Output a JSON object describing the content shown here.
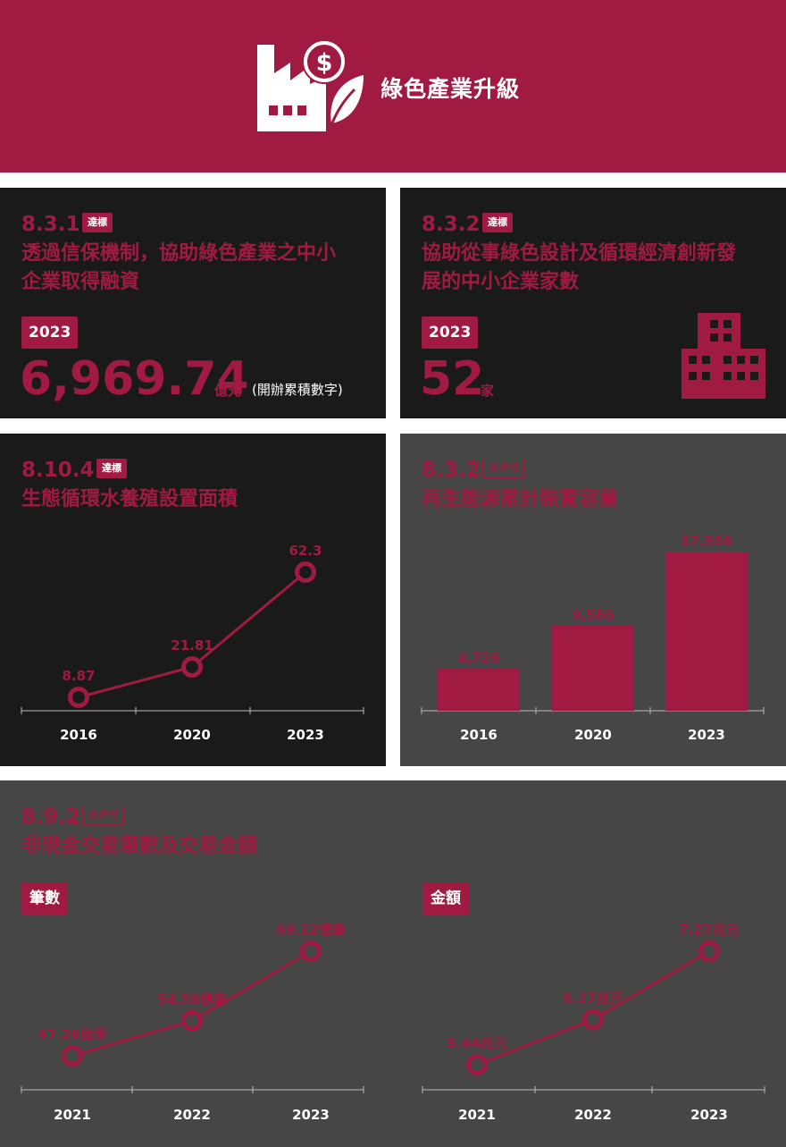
{
  "header": {
    "title": "綠色產業升級",
    "icon": "factory-money-leaf-icon"
  },
  "colors": {
    "accent": "#a01a41",
    "dark_bg": "#1a1a1a",
    "grey_bg": "#464646",
    "header_bg": "#a01a41"
  },
  "panels": {
    "p1": {
      "code": "8.3.1",
      "status": "達標",
      "title_lines": [
        "透過信保機制，協助綠色產業之中小",
        "企業取得融資"
      ],
      "year": "2023",
      "value": "6,969.74",
      "unit": "億元",
      "note": "(開辦累積數字)"
    },
    "p2": {
      "code": "8.3.2",
      "status": "達標",
      "title_lines": [
        "協助從事綠色設計及循環經濟創新發",
        "展的中小企業家數"
      ],
      "year": "2023",
      "value": "52",
      "unit": "家",
      "icon": "building-icon"
    },
    "p3": {
      "code": "8.10.4",
      "status": "達標",
      "title": "生態循環水養殖設置面積"
    },
    "p4": {
      "code": "8.3.2",
      "status": "未達標",
      "title": "再生能源累計裝置容量"
    },
    "p5": {
      "code": "8.9.2",
      "status": "未達標",
      "title": "非現金交易筆數及交易金額",
      "tab_left": "筆數",
      "tab_right": "金額"
    }
  },
  "chart_data": [
    {
      "type": "line",
      "x": [
        "2016",
        "2020",
        "2023"
      ],
      "values": [
        8.87,
        21.81,
        62.3
      ],
      "labels": [
        "8.87",
        "21.81",
        "62.3"
      ],
      "ylim": [
        0,
        70
      ]
    },
    {
      "type": "bar",
      "categories": [
        "2016",
        "2020",
        "2023"
      ],
      "values": [
        4726,
        9586,
        17956
      ],
      "labels": [
        "4,726",
        "9,586",
        "17,956"
      ],
      "ylim": [
        0,
        19000
      ]
    },
    {
      "type": "line",
      "x": [
        "2021",
        "2022",
        "2023"
      ],
      "values": [
        47.26,
        54.58,
        69.12
      ],
      "labels": [
        "47.26億筆",
        "54.58億筆",
        "69.12億筆"
      ]
    },
    {
      "type": "line",
      "x": [
        "2021",
        "2022",
        "2023"
      ],
      "values": [
        5.44,
        6.17,
        7.27
      ],
      "labels": [
        "5.44兆元",
        "6.17兆元",
        "7.27兆元"
      ]
    }
  ]
}
